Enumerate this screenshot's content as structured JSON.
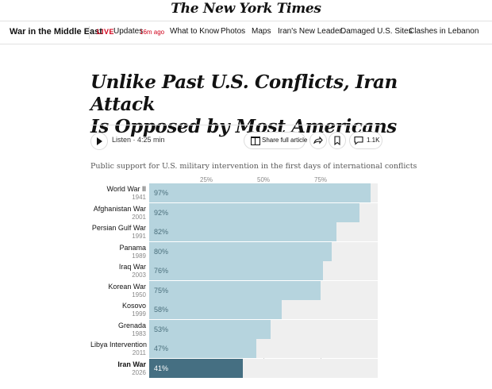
{
  "masthead": {
    "logo_text": "The New York Times"
  },
  "nav": {
    "section": "War in the Middle East",
    "live_badge": "LIVE",
    "live_label": "Updates",
    "live_time": "16m ago",
    "links": [
      "What to Know",
      "Photos",
      "Maps",
      "Iran's New Leader",
      "Damaged U.S. Sites",
      "Clashes in Lebanon"
    ]
  },
  "article": {
    "headline_line1": "Unlike Past U.S. Conflicts, Iran Attack",
    "headline_line2": "Is Opposed by Most Americans",
    "listen_label": "Listen · 4:25 min",
    "share_label": "Share full article",
    "comments_count": "1.1K"
  },
  "icons": {
    "play": "play-icon",
    "share": "gift-icon",
    "forward": "forward-arrow-icon",
    "bookmark": "bookmark-icon",
    "comments": "comment-bubble-icon"
  },
  "colors": {
    "bar": "#b6d4de",
    "highlight_bar": "#456f82",
    "track": "#efefef",
    "live": "#d0021b"
  },
  "chart_data": {
    "type": "bar",
    "orientation": "horizontal",
    "title": "Public support for U.S. military intervention in the first days of international conflicts",
    "tick_labels": [
      "25%",
      "50%",
      "75%"
    ],
    "ticks": [
      25,
      50,
      75
    ],
    "xlim": [
      0,
      100
    ],
    "grid": true,
    "highlight_category": "Iran War",
    "rows": [
      {
        "name": "World War II",
        "year": "1941",
        "value": 97,
        "label": "97%"
      },
      {
        "name": "Afghanistan War",
        "year": "2001",
        "value": 92,
        "label": "92%"
      },
      {
        "name": "Persian Gulf War",
        "year": "1991",
        "value": 82,
        "label": "82%"
      },
      {
        "name": "Panama",
        "year": "1989",
        "value": 80,
        "label": "80%"
      },
      {
        "name": "Iraq War",
        "year": "2003",
        "value": 76,
        "label": "76%"
      },
      {
        "name": "Korean War",
        "year": "1950",
        "value": 75,
        "label": "75%"
      },
      {
        "name": "Kosovo",
        "year": "1999",
        "value": 58,
        "label": "58%"
      },
      {
        "name": "Grenada",
        "year": "1983",
        "value": 53,
        "label": "53%"
      },
      {
        "name": "Libya Intervention",
        "year": "2011",
        "value": 47,
        "label": "47%"
      },
      {
        "name": "Iran War",
        "year": "2026",
        "value": 41,
        "label": "41%"
      }
    ]
  }
}
